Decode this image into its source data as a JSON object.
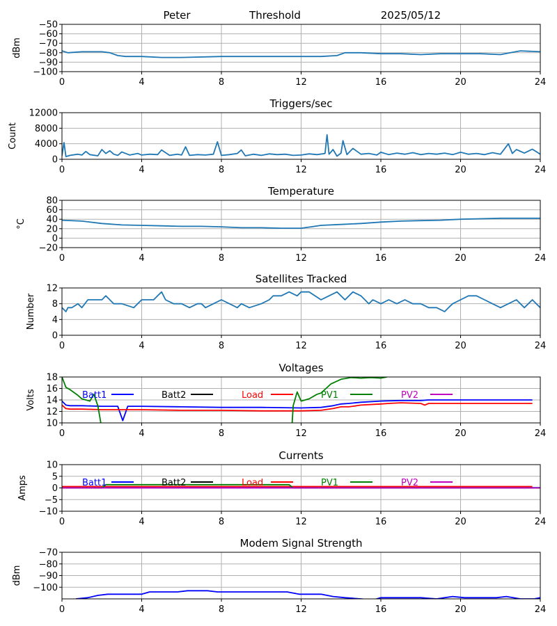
{
  "header": {
    "station": "Peter",
    "mode": "Threshold",
    "date": "2025/05/12"
  },
  "chart_data": [
    {
      "id": "signal",
      "type": "line",
      "title": "",
      "ylabel": "dBm",
      "xlim": [
        0,
        24
      ],
      "ylim": [
        -100,
        -50
      ],
      "xticks": [
        0,
        4,
        8,
        12,
        16,
        20,
        24
      ],
      "yticks": [
        -100,
        -90,
        -80,
        -70,
        -60,
        -50
      ],
      "grid": true,
      "series": [
        {
          "color": "#1f77b4",
          "x": [
            0,
            0.3,
            1,
            2,
            2.4,
            2.8,
            3.2,
            4,
            5,
            6,
            8,
            10,
            12,
            13,
            13.8,
            14.2,
            15,
            16,
            17,
            18,
            19,
            20,
            21,
            22,
            22.5,
            23,
            24
          ],
          "y": [
            -78,
            -80,
            -79,
            -79,
            -80,
            -83,
            -84,
            -84,
            -85,
            -85,
            -84,
            -84,
            -84,
            -84,
            -83,
            -80,
            -80,
            -81,
            -81,
            -82,
            -81,
            -81,
            -81,
            -82,
            -80,
            -78,
            -79
          ]
        }
      ]
    },
    {
      "id": "triggers",
      "type": "line",
      "title": "Triggers/sec",
      "ylabel": "Count",
      "xlim": [
        0,
        24
      ],
      "ylim": [
        0,
        12000
      ],
      "xticks": [
        0,
        4,
        8,
        12,
        16,
        20,
        24
      ],
      "yticks": [
        0,
        4000,
        8000,
        12000
      ],
      "grid": true,
      "series": [
        {
          "color": "#1f77b4",
          "x": [
            0,
            0.1,
            0.2,
            0.4,
            0.8,
            1,
            1.2,
            1.4,
            1.8,
            2,
            2.2,
            2.4,
            2.6,
            2.8,
            3,
            3.4,
            3.8,
            4,
            4.4,
            4.8,
            5,
            5.4,
            5.8,
            6,
            6.2,
            6.4,
            6.8,
            7.2,
            7.6,
            7.8,
            8,
            8.4,
            8.8,
            9,
            9.2,
            9.6,
            10,
            10.4,
            10.8,
            11.2,
            11.6,
            12,
            12.4,
            12.8,
            13.2,
            13.3,
            13.4,
            13.6,
            13.8,
            14,
            14.1,
            14.3,
            14.6,
            15,
            15.4,
            15.8,
            16,
            16.4,
            16.8,
            17.2,
            17.6,
            18,
            18.4,
            18.8,
            19.2,
            19.6,
            20,
            20.4,
            20.8,
            21.2,
            21.6,
            22,
            22.4,
            22.6,
            22.8,
            23.2,
            23.6,
            24
          ],
          "y": [
            900,
            4300,
            700,
            1000,
            1300,
            1100,
            2000,
            1200,
            900,
            2500,
            1500,
            2200,
            1300,
            1000,
            1900,
            1100,
            1500,
            1100,
            1300,
            1200,
            2400,
            1000,
            1300,
            1100,
            3200,
            1000,
            1200,
            1100,
            1300,
            4500,
            1000,
            1200,
            1500,
            2400,
            900,
            1300,
            1000,
            1400,
            1200,
            1300,
            1000,
            1100,
            1400,
            1200,
            1500,
            6300,
            1300,
            2500,
            800,
            1600,
            4800,
            1200,
            2800,
            1300,
            1500,
            1100,
            1800,
            1200,
            1600,
            1300,
            1700,
            1200,
            1500,
            1300,
            1600,
            1200,
            1800,
            1300,
            1500,
            1200,
            1700,
            1300,
            4000,
            1500,
            2500,
            1600,
            2600,
            1300
          ]
        }
      ]
    },
    {
      "id": "temperature",
      "type": "line",
      "title": "Temperature",
      "ylabel": "°C",
      "xlim": [
        0,
        24
      ],
      "ylim": [
        -20,
        80
      ],
      "xticks": [
        0,
        4,
        8,
        12,
        16,
        20,
        24
      ],
      "yticks": [
        -20,
        0,
        20,
        40,
        60,
        80
      ],
      "grid": true,
      "series": [
        {
          "color": "#1f77b4",
          "x": [
            0,
            1,
            2,
            3,
            4,
            5,
            6,
            7,
            8,
            9,
            10,
            11,
            12,
            12.5,
            13,
            14,
            15,
            16,
            17,
            18,
            19,
            20,
            21,
            22,
            23,
            24
          ],
          "y": [
            38,
            36,
            31,
            28,
            27,
            26,
            25,
            25,
            24,
            22,
            22,
            21,
            21,
            24,
            27,
            29,
            31,
            34,
            36,
            37,
            38,
            40,
            41,
            42,
            42,
            42
          ]
        }
      ]
    },
    {
      "id": "satellites",
      "type": "line",
      "title": "Satellites Tracked",
      "ylabel": "Number",
      "xlim": [
        0,
        24
      ],
      "ylim": [
        0,
        12
      ],
      "xticks": [
        0,
        4,
        8,
        12,
        16,
        20,
        24
      ],
      "yticks": [
        0,
        4,
        8,
        12
      ],
      "grid": true,
      "series": [
        {
          "color": "#1f77b4",
          "x": [
            0,
            0.2,
            0.3,
            0.5,
            0.8,
            1,
            1.3,
            2,
            2.2,
            2.4,
            2.6,
            3,
            3.6,
            4,
            4.6,
            4.8,
            5,
            5.2,
            5.6,
            6,
            6.4,
            6.8,
            7,
            7.2,
            7.6,
            8,
            8.4,
            8.8,
            9,
            9.4,
            10,
            10.4,
            10.6,
            11,
            11.4,
            11.8,
            12,
            12.4,
            13,
            13.4,
            13.8,
            14.2,
            14.6,
            15,
            15.4,
            15.6,
            16,
            16.4,
            16.8,
            17.2,
            17.6,
            18,
            18.4,
            18.8,
            19.2,
            19.4,
            19.6,
            20,
            20.4,
            20.8,
            21.2,
            21.6,
            22,
            22.4,
            22.8,
            23.2,
            23.6,
            23.8,
            24
          ],
          "y": [
            7,
            6,
            7,
            7,
            8,
            7,
            9,
            9,
            10,
            9,
            8,
            8,
            7,
            9,
            9,
            10,
            11,
            9,
            8,
            8,
            7,
            8,
            8,
            7,
            8,
            9,
            8,
            7,
            8,
            7,
            8,
            9,
            10,
            10,
            11,
            10,
            11,
            11,
            9,
            10,
            11,
            9,
            11,
            10,
            8,
            9,
            8,
            9,
            8,
            9,
            8,
            8,
            7,
            7,
            6,
            7,
            8,
            9,
            10,
            10,
            9,
            8,
            7,
            8,
            9,
            7,
            9,
            8,
            7
          ]
        }
      ]
    },
    {
      "id": "voltages",
      "type": "line",
      "title": "Voltages",
      "ylabel": "Volts",
      "xlim": [
        0,
        24
      ],
      "ylim": [
        10,
        18
      ],
      "xticks": [
        0,
        4,
        8,
        12,
        16,
        20,
        24
      ],
      "yticks": [
        10,
        12,
        14,
        16,
        18
      ],
      "grid": true,
      "legend": {
        "placement": "top"
      },
      "series": [
        {
          "name": "Batt1",
          "color": "#0000ff",
          "x": [
            0,
            0.2,
            0.4,
            1,
            2,
            2.8,
            3.05,
            3.3,
            4,
            6,
            8,
            10,
            12,
            13,
            13.6,
            14,
            14.4,
            15,
            16,
            17,
            18,
            18.4,
            20,
            21,
            22,
            23,
            23.6
          ],
          "y": [
            13.8,
            13.1,
            13.0,
            13.0,
            12.9,
            12.9,
            10.4,
            12.9,
            12.9,
            12.8,
            12.7,
            12.7,
            12.6,
            12.7,
            13.0,
            13.3,
            13.4,
            13.6,
            13.8,
            13.9,
            13.9,
            14.0,
            14.0,
            14.0,
            14.0,
            14.0,
            14.0
          ]
        },
        {
          "name": "Batt2",
          "color": "#000000",
          "x": [],
          "y": []
        },
        {
          "name": "Load",
          "color": "#ff0000",
          "x": [
            0,
            0.2,
            0.4,
            1,
            2,
            4,
            6,
            8,
            10,
            12,
            13,
            13.6,
            14,
            14.4,
            15,
            16,
            16.4,
            17,
            18,
            18.2,
            18.4,
            20,
            22,
            23.6
          ],
          "y": [
            13.1,
            12.5,
            12.4,
            12.4,
            12.3,
            12.3,
            12.2,
            12.2,
            12.1,
            12.1,
            12.2,
            12.5,
            12.8,
            12.8,
            13.1,
            13.3,
            13.4,
            13.5,
            13.4,
            13.1,
            13.4,
            13.4,
            13.4,
            13.4
          ]
        },
        {
          "name": "PV1",
          "color": "#008000",
          "x": [
            0,
            0.2,
            0.4,
            0.8,
            1,
            1.4,
            1.6,
            1.8,
            1.9,
            1.95,
            2.0,
            11.5,
            11.55,
            11.6,
            11.8,
            12,
            12.4,
            12.8,
            13,
            13.5,
            14,
            14.5,
            15,
            15.5,
            16,
            16.3
          ],
          "y": [
            18,
            16.2,
            15.8,
            14.8,
            14.2,
            13.8,
            15,
            13,
            11,
            10,
            null,
            null,
            10,
            13,
            15.4,
            13.8,
            14.2,
            15,
            15.2,
            16.8,
            17.6,
            17.9,
            17.8,
            17.9,
            17.8,
            18
          ]
        },
        {
          "name": "PV2",
          "color": "#bf00bf",
          "x": [],
          "y": []
        }
      ]
    },
    {
      "id": "currents",
      "type": "line",
      "title": "Currents",
      "ylabel": "Amps",
      "xlim": [
        0,
        24
      ],
      "ylim": [
        -10,
        10
      ],
      "xticks": [
        0,
        4,
        8,
        12,
        16,
        20,
        24
      ],
      "yticks": [
        -10,
        -5,
        0,
        5,
        10
      ],
      "grid": true,
      "legend": {
        "placement": "top"
      },
      "series": [
        {
          "name": "Batt1",
          "color": "#0000ff",
          "x": [
            0,
            24
          ],
          "y": [
            0.1,
            0.1
          ]
        },
        {
          "name": "Batt2",
          "color": "#000000",
          "x": [],
          "y": []
        },
        {
          "name": "Load",
          "color": "#ff0000",
          "x": [
            0,
            4,
            8,
            12,
            16,
            20,
            23.6
          ],
          "y": [
            0.6,
            0.6,
            0.6,
            0.6,
            0.6,
            0.6,
            0.6
          ]
        },
        {
          "name": "PV1",
          "color": "#008000",
          "x": [
            0,
            2,
            2.2,
            11,
            11.4,
            11.6,
            24
          ],
          "y": [
            0,
            0,
            1.4,
            1.4,
            1.4,
            0,
            0
          ]
        },
        {
          "name": "PV2",
          "color": "#bf00bf",
          "x": [
            0,
            24
          ],
          "y": [
            0,
            0
          ]
        }
      ]
    },
    {
      "id": "modem",
      "type": "line",
      "title": "Modem Signal Strength",
      "ylabel": "dBm",
      "xlim": [
        0,
        24
      ],
      "ylim": [
        -110,
        -70
      ],
      "xticks": [
        0,
        4,
        8,
        12,
        16,
        20,
        24
      ],
      "yticks": [
        -100,
        -90,
        -80,
        -70
      ],
      "grid": true,
      "series": [
        {
          "color": "#0000ff",
          "x": [
            0.7,
            1.3,
            1.8,
            2.3,
            2.8,
            3.3,
            4,
            4.4,
            5,
            5.8,
            6.3,
            6.8,
            7.3,
            7.8,
            8.3,
            9,
            9.8,
            10.6,
            11.3,
            11.9,
            12.3,
            13,
            13.6,
            14.2,
            15,
            15.6,
            16,
            16.6,
            17.3,
            18,
            18.8,
            19.6,
            20.2,
            21,
            21.8,
            22.3,
            23,
            23.7,
            24
          ],
          "y": [
            -110,
            -109,
            -107,
            -106,
            -106,
            -106,
            -106,
            -104,
            -104,
            -104,
            -103,
            -103,
            -103,
            -104,
            -104,
            -104,
            -104,
            -104,
            -104,
            -106,
            -106,
            -106,
            -108,
            -109,
            -110,
            -111,
            -109,
            -109,
            -109,
            -109,
            -110,
            -108,
            -109,
            -109,
            -109,
            -108,
            -110,
            -110,
            -109
          ]
        }
      ]
    }
  ]
}
